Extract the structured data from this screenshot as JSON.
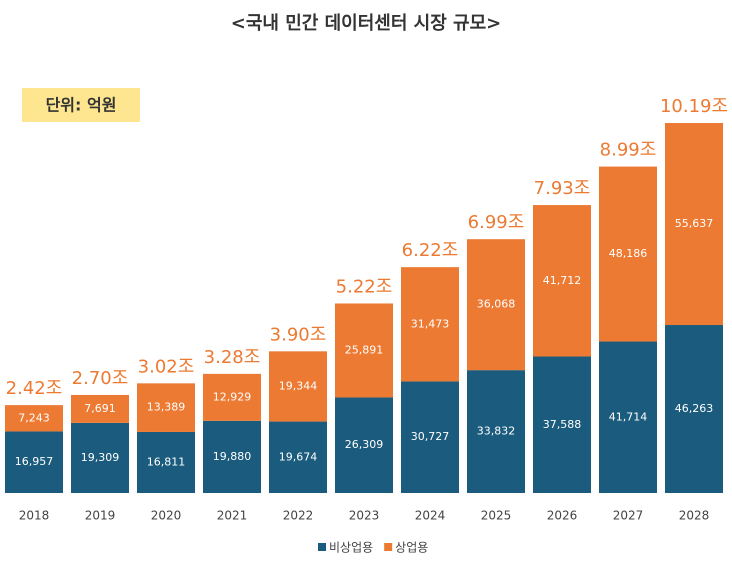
{
  "chart_data": {
    "type": "stacked-bar",
    "title": "<국내 민간 데이터센터 시장 규모>",
    "unit_note": "단위: 억원",
    "categories": [
      "2018",
      "2019",
      "2020",
      "2021",
      "2022",
      "2023",
      "2024",
      "2025",
      "2026",
      "2027",
      "2028"
    ],
    "series": [
      {
        "name": "비상업용",
        "color": "#1b5b7d",
        "values": [
          16957,
          19309,
          16811,
          19880,
          19674,
          26309,
          30727,
          33832,
          37588,
          41714,
          46263
        ],
        "value_labels": [
          "16,957",
          "19,309",
          "16,811",
          "19,880",
          "19,674",
          "26,309",
          "30,727",
          "33,832",
          "37,588",
          "41,714",
          "46,263"
        ]
      },
      {
        "name": "상업용",
        "color": "#ec7a32",
        "values": [
          7243,
          7691,
          13389,
          12929,
          19344,
          25891,
          31473,
          36068,
          41712,
          48186,
          55637
        ],
        "value_labels": [
          "7,243",
          "7,691",
          "13,389",
          "12,929",
          "19,344",
          "25,891",
          "31,473",
          "36,068",
          "41,712",
          "48,186",
          "55,637"
        ]
      }
    ],
    "total_labels": [
      "2.42조",
      "2.70조",
      "3.02조",
      "3.28조",
      "3.90조",
      "5.22조",
      "6.22조",
      "6.99조",
      "7.93조",
      "8.99조",
      "10.19조"
    ],
    "total_label_color": "#ec7a32"
  }
}
